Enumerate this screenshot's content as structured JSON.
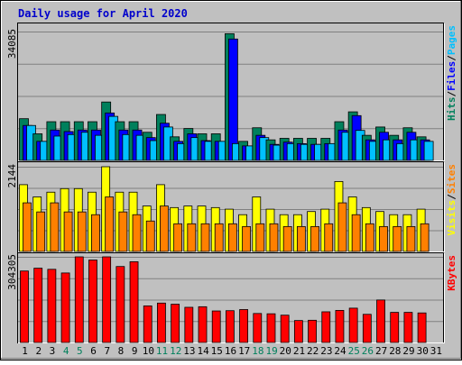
{
  "chart_data": {
    "type": "bar",
    "title": "Daily usage for April 2020",
    "days": [
      "1",
      "2",
      "3",
      "4",
      "5",
      "6",
      "7",
      "8",
      "9",
      "10",
      "11",
      "12",
      "13",
      "14",
      "15",
      "16",
      "17",
      "18",
      "19",
      "20",
      "21",
      "22",
      "23",
      "24",
      "25",
      "26",
      "27",
      "28",
      "29",
      "30",
      "31"
    ],
    "weekend_days": [
      4,
      5,
      11,
      12,
      18,
      19,
      25,
      26
    ],
    "colors": {
      "title": "#0000cc",
      "background": "#c0c0c0",
      "hits": "#00805c",
      "files": "#0000ff",
      "pages": "#00c0ff",
      "visits": "#ffff00",
      "sites": "#ff8000",
      "kbytes": "#ff0000",
      "weekend_label": "#00805c",
      "weekday_label": "#000000"
    },
    "panels": [
      {
        "name": "hits-files-pages",
        "max_label": "34085",
        "max": 34085,
        "legend": [
          {
            "text": "Hits",
            "color": "#00805c"
          },
          {
            "text": "/",
            "color": "#000000"
          },
          {
            "text": "Files",
            "color": "#0000ff"
          },
          {
            "text": "/",
            "color": "#000000"
          },
          {
            "text": "Pages",
            "color": "#00c0ff"
          }
        ],
        "series": [
          {
            "name": "Hits",
            "color": "#00805c",
            "values": [
              11040,
              7040,
              10240,
              10240,
              10240,
              10240,
              15450,
              10240,
              10240,
              7440,
              12150,
              6240,
              8440,
              7040,
              7040,
              33520,
              5040,
              8640,
              5440,
              5840,
              5840,
              5840,
              5840,
              10240,
              12850,
              6640,
              8840,
              6640,
              8640,
              6240,
              0
            ]
          },
          {
            "name": "Files",
            "color": "#0000ff",
            "values": [
              9240,
              5040,
              8040,
              7640,
              8040,
              8040,
              12550,
              8040,
              8040,
              6040,
              9840,
              5040,
              7040,
              5240,
              5040,
              32110,
              3840,
              6640,
              4240,
              4840,
              4440,
              4240,
              4440,
              8040,
              11850,
              5440,
              7440,
              5440,
              7440,
              5440,
              0
            ]
          },
          {
            "name": "Pages",
            "color": "#00c0ff",
            "values": [
              9240,
              5040,
              6440,
              6840,
              7440,
              6640,
              11650,
              6840,
              6640,
              5240,
              8840,
              4440,
              6040,
              5040,
              5040,
              4440,
              3840,
              6040,
              4040,
              4440,
              4240,
              4240,
              4440,
              7440,
              7940,
              5040,
              5440,
              4440,
              5440,
              5040,
              0
            ]
          }
        ]
      },
      {
        "name": "visits-sites",
        "max_label": "2144",
        "max": 2144,
        "legend": [
          {
            "text": "Visits",
            "color": "#ffff00"
          },
          {
            "text": "/",
            "color": "#000000"
          },
          {
            "text": "Sites",
            "color": "#ff8000"
          }
        ],
        "series": [
          {
            "name": "Visits",
            "color": "#ffff00",
            "values": [
              1690,
              1380,
              1500,
              1590,
              1590,
              1500,
              2144,
              1500,
              1500,
              1150,
              1690,
              1110,
              1150,
              1150,
              1110,
              1070,
              930,
              1380,
              1070,
              930,
              930,
              1010,
              1070,
              1770,
              1380,
              1110,
              1010,
              930,
              930,
              1070,
              0
            ]
          },
          {
            "name": "Sites",
            "color": "#ff8000",
            "values": [
              1230,
              1000,
              1230,
              1000,
              1000,
              930,
              1380,
              1000,
              930,
              770,
              1150,
              700,
              700,
              700,
              700,
              700,
              630,
              700,
              700,
              630,
              630,
              630,
              700,
              1230,
              930,
              700,
              630,
              630,
              630,
              700,
              0
            ]
          }
        ]
      },
      {
        "name": "kbytes",
        "max_label": "304305",
        "max": 304305,
        "legend": [
          {
            "text": "KBytes",
            "color": "#ff0000"
          }
        ],
        "series": [
          {
            "name": "KBytes",
            "color": "#ff0000",
            "values": [
              254000,
              264000,
              260000,
              247000,
              304305,
              293000,
              304305,
              270000,
              287000,
              130000,
              140000,
              136000,
              125000,
              127000,
              112000,
              113000,
              117000,
              103000,
              102000,
              97000,
              78000,
              79000,
              109000,
              114000,
              122000,
              100000,
              151000,
              107000,
              107000,
              105000,
              0
            ]
          }
        ]
      }
    ]
  }
}
